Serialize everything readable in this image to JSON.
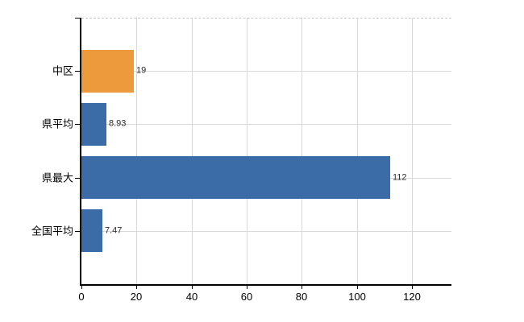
{
  "chart_data": {
    "type": "bar",
    "orientation": "horizontal",
    "title": "",
    "xlabel": "",
    "ylabel": "",
    "categories": [
      "中区",
      "県平均",
      "県最大",
      "全国平均"
    ],
    "values": [
      19,
      8.93,
      112,
      7.47
    ],
    "value_labels": [
      "19",
      "8.93",
      "112",
      "7.47"
    ],
    "bar_colors": [
      "#ED9A3C",
      "#3B6CA7",
      "#3B6CA7",
      "#3B6CA7"
    ],
    "x_ticks": [
      0,
      20,
      40,
      60,
      80,
      100,
      120
    ],
    "x_tick_labels": [
      "0",
      "20",
      "40",
      "60",
      "80",
      "100",
      "120"
    ],
    "xlim": [
      0,
      134.3
    ],
    "grid": true,
    "legend": false
  },
  "colors": {
    "highlight_bar": "#ED9A3C",
    "default_bar": "#3B6CA7",
    "grid": "#D9D9D9",
    "top_border": "#C9C9C9",
    "axis": "#000000",
    "text": "#000000",
    "background": "#FFFFFF"
  }
}
